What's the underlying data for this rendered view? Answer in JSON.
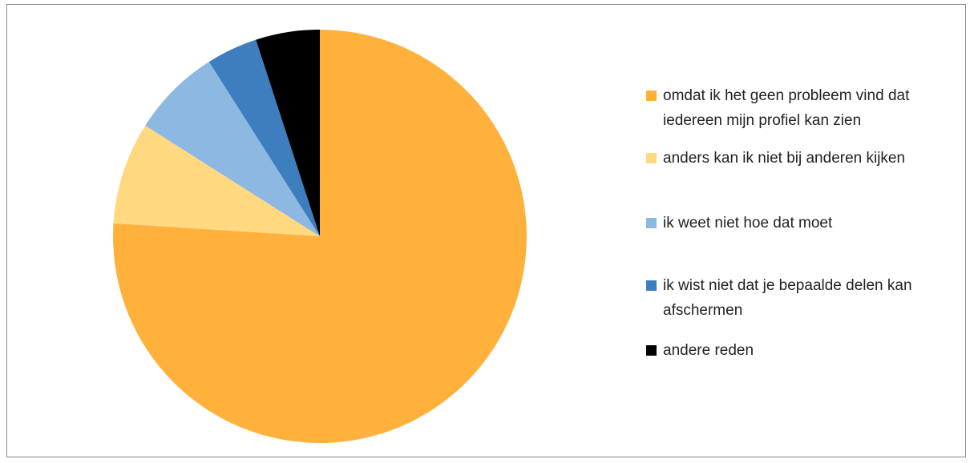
{
  "chart_data": {
    "type": "pie",
    "categories": [
      "omdat ik het geen probleem vind dat iedereen mijn profiel kan zien",
      "anders kan ik niet bij anderen kijken",
      "ik weet niet hoe dat moet",
      "ik wist niet dat je bepaalde delen kan afschermen",
      "andere reden"
    ],
    "values": [
      76,
      8,
      7,
      4,
      5
    ],
    "colors": [
      "#FFB13B",
      "#FFD880",
      "#8DB8E2",
      "#3D7EBF",
      "#000000"
    ],
    "legend": "right"
  }
}
